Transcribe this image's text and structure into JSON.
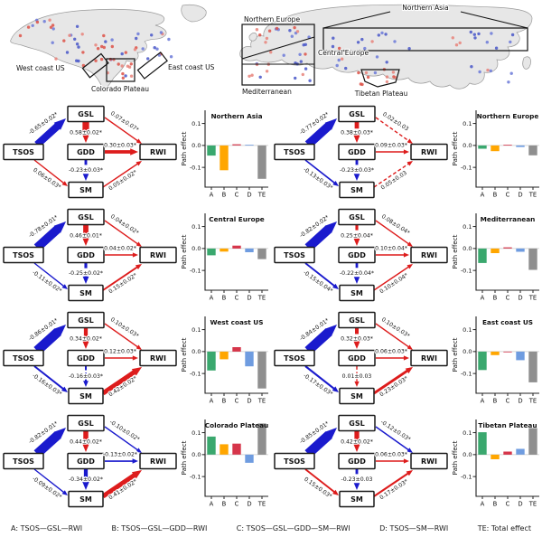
{
  "maps": {
    "left": {
      "regions": [
        {
          "label": "West coast US"
        },
        {
          "label": "Colorado Plateau"
        },
        {
          "label": "East coast US"
        }
      ]
    },
    "right": {
      "regions": [
        {
          "label": "Northern Europe"
        },
        {
          "label": "Northern Asia"
        },
        {
          "label": "Central Europe"
        },
        {
          "label": "Mediterranean"
        },
        {
          "label": "Tibetan Plateau"
        }
      ]
    },
    "land_color": "#e7e7e7",
    "marker_colors": {
      "red": [
        "#e8837a",
        "#dd5147"
      ],
      "blue": [
        "#6b79d8",
        "#4856c8"
      ]
    }
  },
  "diagram": {
    "nodes": [
      "TSOS",
      "GSL",
      "GDD",
      "SM",
      "RWI"
    ],
    "edge_colors": {
      "positive": "#dd1c1c",
      "negative": "#1a1acd"
    }
  },
  "panels": [
    {
      "region": "Northern Asia",
      "edges": [
        {
          "from": "TSOS",
          "to": "GSL",
          "label": "-0.65±0.02*",
          "value": -0.65,
          "dashed": false
        },
        {
          "from": "GSL",
          "to": "GDD",
          "label": "0.58±0.02*",
          "value": 0.58,
          "dashed": true
        },
        {
          "from": "GSL",
          "to": "RWI",
          "label": "0.07±0.07*",
          "value": 0.07,
          "dashed": false
        },
        {
          "from": "GDD",
          "to": "RWI",
          "label": "0.30±0.03*",
          "value": 0.3,
          "dashed": false
        },
        {
          "from": "GDD",
          "to": "SM",
          "label": "-0.23±0.03*",
          "value": -0.23,
          "dashed": true
        },
        {
          "from": "TSOS",
          "to": "SM",
          "label": "0.06±0.03*",
          "value": 0.06,
          "dashed": false
        },
        {
          "from": "SM",
          "to": "RWI",
          "label": "0.05±0.02*",
          "value": 0.05,
          "dashed": false
        }
      ]
    },
    {
      "region": "Northern Europe",
      "edges": [
        {
          "from": "TSOS",
          "to": "GSL",
          "label": "-0.77±0.02*",
          "value": -0.77,
          "dashed": false
        },
        {
          "from": "GSL",
          "to": "GDD",
          "label": "0.38±0.03*",
          "value": 0.38,
          "dashed": true
        },
        {
          "from": "GSL",
          "to": "RWI",
          "label": "0.02±0.03",
          "value": 0.02,
          "dashed": true
        },
        {
          "from": "GDD",
          "to": "RWI",
          "label": "0.09±0.03*",
          "value": 0.09,
          "dashed": false
        },
        {
          "from": "GDD",
          "to": "SM",
          "label": "-0.23±0.03*",
          "value": -0.23,
          "dashed": true
        },
        {
          "from": "TSOS",
          "to": "SM",
          "label": "-0.13±0.03*",
          "value": -0.13,
          "dashed": false
        },
        {
          "from": "SM",
          "to": "RWI",
          "label": "0.05±0.03",
          "value": 0.05,
          "dashed": true
        }
      ]
    },
    {
      "region": "Central Europe",
      "edges": [
        {
          "from": "TSOS",
          "to": "GSL",
          "label": "-0.78±0.01*",
          "value": -0.78,
          "dashed": false
        },
        {
          "from": "GSL",
          "to": "GDD",
          "label": "0.46±0.01*",
          "value": 0.46,
          "dashed": false
        },
        {
          "from": "GSL",
          "to": "RWI",
          "label": "0.04±0.02*",
          "value": 0.04,
          "dashed": false
        },
        {
          "from": "GDD",
          "to": "RWI",
          "label": "0.04±0.02*",
          "value": 0.04,
          "dashed": false
        },
        {
          "from": "GDD",
          "to": "SM",
          "label": "-0.25±0.02*",
          "value": -0.25,
          "dashed": true
        },
        {
          "from": "TSOS",
          "to": "SM",
          "label": "-0.11±0.02*",
          "value": -0.11,
          "dashed": false
        },
        {
          "from": "SM",
          "to": "RWI",
          "label": "0.15±0.02*",
          "value": 0.15,
          "dashed": false
        }
      ]
    },
    {
      "region": "Mediterranean",
      "edges": [
        {
          "from": "TSOS",
          "to": "GSL",
          "label": "-0.82±0.02*",
          "value": -0.82,
          "dashed": false
        },
        {
          "from": "GSL",
          "to": "GDD",
          "label": "0.25±0.04*",
          "value": 0.25,
          "dashed": true
        },
        {
          "from": "GSL",
          "to": "RWI",
          "label": "0.08±0.04*",
          "value": 0.08,
          "dashed": false
        },
        {
          "from": "GDD",
          "to": "RWI",
          "label": "0.10±0.04*",
          "value": 0.1,
          "dashed": false
        },
        {
          "from": "GDD",
          "to": "SM",
          "label": "-0.22±0.04*",
          "value": -0.22,
          "dashed": true
        },
        {
          "from": "TSOS",
          "to": "SM",
          "label": "-0.15±0.04*",
          "value": -0.15,
          "dashed": false
        },
        {
          "from": "SM",
          "to": "RWI",
          "label": "0.10±0.04*",
          "value": 0.1,
          "dashed": false
        }
      ]
    },
    {
      "region": "West coast US",
      "edges": [
        {
          "from": "TSOS",
          "to": "GSL",
          "label": "-0.86±0.01*",
          "value": -0.86,
          "dashed": false
        },
        {
          "from": "GSL",
          "to": "GDD",
          "label": "0.34±0.02*",
          "value": 0.34,
          "dashed": false
        },
        {
          "from": "GSL",
          "to": "RWI",
          "label": "0.10±0.03*",
          "value": 0.1,
          "dashed": false
        },
        {
          "from": "GDD",
          "to": "RWI",
          "label": "0.12±0.03*",
          "value": 0.12,
          "dashed": false
        },
        {
          "from": "GDD",
          "to": "SM",
          "label": "-0.16±0.03*",
          "value": -0.16,
          "dashed": true
        },
        {
          "from": "TSOS",
          "to": "SM",
          "label": "-0.16±0.03*",
          "value": -0.16,
          "dashed": false
        },
        {
          "from": "SM",
          "to": "RWI",
          "label": "0.42±0.02*",
          "value": 0.42,
          "dashed": false
        }
      ]
    },
    {
      "region": "East coast US",
      "edges": [
        {
          "from": "TSOS",
          "to": "GSL",
          "label": "-0.84±0.01*",
          "value": -0.84,
          "dashed": false
        },
        {
          "from": "GSL",
          "to": "GDD",
          "label": "0.32±0.03*",
          "value": 0.32,
          "dashed": true
        },
        {
          "from": "GSL",
          "to": "RWI",
          "label": "0.10±0.03*",
          "value": 0.1,
          "dashed": false
        },
        {
          "from": "GDD",
          "to": "RWI",
          "label": "0.06±0.03*",
          "value": 0.06,
          "dashed": false
        },
        {
          "from": "GDD",
          "to": "SM",
          "label": "0.01±0.03",
          "value": 0.01,
          "dashed": true
        },
        {
          "from": "TSOS",
          "to": "SM",
          "label": "-0.17±0.03*",
          "value": -0.17,
          "dashed": false
        },
        {
          "from": "SM",
          "to": "RWI",
          "label": "0.23±0.03*",
          "value": 0.23,
          "dashed": false
        }
      ]
    },
    {
      "region": "Colorado Plateau",
      "edges": [
        {
          "from": "TSOS",
          "to": "GSL",
          "label": "-0.82±0.01*",
          "value": -0.82,
          "dashed": false
        },
        {
          "from": "GSL",
          "to": "GDD",
          "label": "0.44±0.02*",
          "value": 0.44,
          "dashed": false
        },
        {
          "from": "GSL",
          "to": "RWI",
          "label": "-0.10±0.02*",
          "value": -0.1,
          "dashed": false
        },
        {
          "from": "GDD",
          "to": "RWI",
          "label": "-0.13±0.02*",
          "value": -0.13,
          "dashed": false
        },
        {
          "from": "GDD",
          "to": "SM",
          "label": "-0.34±0.02*",
          "value": -0.34,
          "dashed": false
        },
        {
          "from": "TSOS",
          "to": "SM",
          "label": "-0.09±0.02*",
          "value": -0.09,
          "dashed": false
        },
        {
          "from": "SM",
          "to": "RWI",
          "label": "0.41±0.02*",
          "value": 0.41,
          "dashed": false
        }
      ]
    },
    {
      "region": "Tibetan Plateau",
      "edges": [
        {
          "from": "TSOS",
          "to": "GSL",
          "label": "-0.85±0.01*",
          "value": -0.85,
          "dashed": false
        },
        {
          "from": "GSL",
          "to": "GDD",
          "label": "0.42±0.02*",
          "value": 0.42,
          "dashed": false
        },
        {
          "from": "GSL",
          "to": "RWI",
          "label": "-0.12±0.03*",
          "value": -0.12,
          "dashed": false
        },
        {
          "from": "GDD",
          "to": "RWI",
          "label": "0.06±0.03*",
          "value": 0.06,
          "dashed": false
        },
        {
          "from": "GDD",
          "to": "SM",
          "label": "-0.23±0.03",
          "value": -0.23,
          "dashed": true
        },
        {
          "from": "TSOS",
          "to": "SM",
          "label": "0.15±0.03*",
          "value": 0.15,
          "dashed": false
        },
        {
          "from": "SM",
          "to": "RWI",
          "label": "0.17±0.03*",
          "value": 0.17,
          "dashed": false
        }
      ]
    }
  ],
  "chart_data": [
    {
      "type": "bar",
      "title": "Northern Asia",
      "categories": [
        "A",
        "B",
        "C",
        "D",
        "TE"
      ],
      "values": [
        -0.046,
        -0.113,
        0.005,
        0.003,
        -0.152
      ],
      "ylabel": "Path effect",
      "yticks": [
        "0.1",
        "0.0",
        "-0.1"
      ],
      "ylim": [
        -0.19,
        0.16
      ],
      "grid": false
    },
    {
      "type": "bar",
      "title": "Northern Europe",
      "categories": [
        "A",
        "B",
        "C",
        "D",
        "TE"
      ],
      "values": [
        -0.015,
        -0.026,
        0.003,
        -0.007,
        -0.045
      ],
      "ylabel": "Path effect",
      "yticks": [
        "0.1",
        "0.0",
        "-0.1"
      ],
      "ylim": [
        -0.19,
        0.16
      ],
      "grid": false
    },
    {
      "type": "bar",
      "title": "Central Europe",
      "categories": [
        "A",
        "B",
        "C",
        "D",
        "TE"
      ],
      "values": [
        -0.031,
        -0.014,
        0.013,
        -0.017,
        -0.048
      ],
      "ylabel": "Path effect",
      "yticks": [
        "0.1",
        "0.0",
        "-0.1"
      ],
      "ylim": [
        -0.19,
        0.16
      ],
      "grid": false
    },
    {
      "type": "bar",
      "title": "Mediterranean",
      "categories": [
        "A",
        "B",
        "C",
        "D",
        "TE"
      ],
      "values": [
        -0.066,
        -0.021,
        0.005,
        -0.015,
        -0.097
      ],
      "ylabel": "Path effect",
      "yticks": [
        "0.1",
        "0.0",
        "-0.1"
      ],
      "ylim": [
        -0.19,
        0.16
      ],
      "grid": false
    },
    {
      "type": "bar",
      "title": "West coast US",
      "categories": [
        "A",
        "B",
        "C",
        "D",
        "TE"
      ],
      "values": [
        -0.086,
        -0.035,
        0.02,
        -0.067,
        -0.168
      ],
      "ylabel": "Path effect",
      "yticks": [
        "0.1",
        "0.0",
        "-0.1"
      ],
      "ylim": [
        -0.19,
        0.16
      ],
      "grid": false
    },
    {
      "type": "bar",
      "title": "East coast US",
      "categories": [
        "A",
        "B",
        "C",
        "D",
        "TE"
      ],
      "values": [
        -0.084,
        -0.016,
        -0.001,
        -0.039,
        -0.14
      ],
      "ylabel": "Path effect",
      "yticks": [
        "0.1",
        "0.0",
        "-0.1"
      ],
      "ylim": [
        -0.19,
        0.16
      ],
      "grid": false
    },
    {
      "type": "bar",
      "title": "Colorado Plateau",
      "categories": [
        "A",
        "B",
        "C",
        "D",
        "TE"
      ],
      "values": [
        0.082,
        0.047,
        0.05,
        -0.037,
        0.142
      ],
      "ylabel": "Path effect",
      "yticks": [
        "0.1",
        "0.0",
        "-0.1"
      ],
      "ylim": [
        -0.19,
        0.16
      ],
      "grid": false
    },
    {
      "type": "bar",
      "title": "Tibetan Plateau",
      "categories": [
        "A",
        "B",
        "C",
        "D",
        "TE"
      ],
      "values": [
        0.102,
        -0.021,
        0.014,
        0.026,
        0.121
      ],
      "ylabel": "Path effect",
      "yticks": [
        "0.1",
        "0.0",
        "-0.1"
      ],
      "ylim": [
        -0.19,
        0.16
      ],
      "grid": false
    }
  ],
  "bar_colors": [
    "#3aa86e",
    "#ffa600",
    "#d6354a",
    "#6f9ce0",
    "#8f8f8f"
  ],
  "legend": {
    "items": [
      "A: TSOS—GSL—RWI",
      "B: TSOS—GSL—GDD—RWI",
      "C: TSOS—GSL—GDD—SM—RWI",
      "D: TSOS—SM—RWI",
      "TE: Total effect"
    ]
  }
}
